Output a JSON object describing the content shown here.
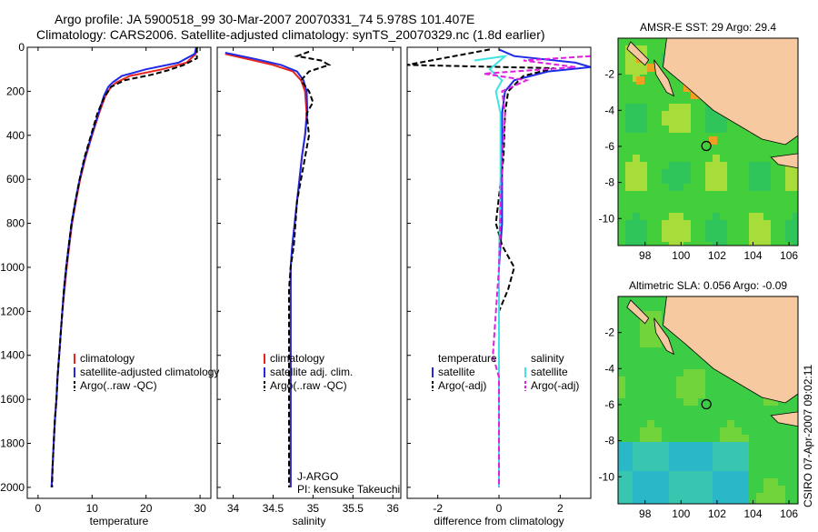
{
  "title": {
    "line1": "Argo profile: JA 5900518_99 30-Mar-2007 20070331_74 5.978S 101.407E",
    "line2": "Climatology: CARS2006. Satellite-adjusted climatology: synTS_20070329.nc (1.8d earlier)"
  },
  "stamp": "CSIRO 07-Apr-2007 09:02:11",
  "colors": {
    "climatology": "#e8241c",
    "satellite": "#1e2ae6",
    "argo": "#000000",
    "sat_salinity": "#3fe3e3",
    "argo_adj": "#e020e0",
    "land": "#f7c9a0",
    "sea_hi": "#4ed23a",
    "sea_lo": "#2cc2a8"
  },
  "chart_data": [
    {
      "type": "line",
      "xlabel": "temperature",
      "xlim": [
        -2,
        32
      ],
      "xticks": [
        "0",
        "10",
        "20",
        "30"
      ],
      "xtick_values": [
        0,
        10,
        20,
        30
      ],
      "ylim": [
        2050,
        0
      ],
      "yticks": [
        "0",
        "200",
        "400",
        "600",
        "800",
        "1000",
        "1200",
        "1400",
        "1600",
        "1800",
        "2000"
      ],
      "ytick_values": [
        0,
        200,
        400,
        600,
        800,
        1000,
        1200,
        1400,
        1600,
        1800,
        2000
      ],
      "series": [
        {
          "name": "climatology",
          "style": "solid",
          "color": "climatology",
          "points": [
            [
              29.5,
              0
            ],
            [
              29.2,
              30
            ],
            [
              27.5,
              70
            ],
            [
              23,
              100
            ],
            [
              17,
              130
            ],
            [
              14.5,
              160
            ],
            [
              13.5,
              180
            ],
            [
              12.5,
              220
            ],
            [
              11.3,
              300
            ],
            [
              10,
              400
            ],
            [
              8.8,
              500
            ],
            [
              7.8,
              600
            ],
            [
              7,
              700
            ],
            [
              6.3,
              800
            ],
            [
              5.8,
              900
            ],
            [
              5.3,
              1000
            ],
            [
              4.9,
              1100
            ],
            [
              4.5,
              1200
            ],
            [
              4.2,
              1300
            ],
            [
              3.9,
              1400
            ],
            [
              3.6,
              1500
            ],
            [
              3.4,
              1600
            ],
            [
              3.1,
              1700
            ],
            [
              2.9,
              1800
            ],
            [
              2.7,
              1900
            ],
            [
              2.5,
              2000
            ]
          ]
        },
        {
          "name": "satellite-adjusted climatology",
          "style": "solid",
          "color": "satellite",
          "points": [
            [
              29.3,
              0
            ],
            [
              29,
              30
            ],
            [
              26,
              70
            ],
            [
              20,
              100
            ],
            [
              15.5,
              130
            ],
            [
              13.8,
              160
            ],
            [
              13,
              180
            ],
            [
              12.2,
              220
            ],
            [
              11.2,
              300
            ],
            [
              9.9,
              400
            ],
            [
              8.7,
              500
            ],
            [
              7.7,
              600
            ],
            [
              6.9,
              700
            ],
            [
              6.2,
              800
            ],
            [
              5.7,
              900
            ],
            [
              5.2,
              1000
            ],
            [
              4.8,
              1100
            ],
            [
              4.5,
              1200
            ],
            [
              4.2,
              1300
            ],
            [
              3.9,
              1400
            ],
            [
              3.6,
              1500
            ],
            [
              3.4,
              1600
            ],
            [
              3.1,
              1700
            ],
            [
              2.9,
              1800
            ],
            [
              2.7,
              1900
            ],
            [
              2.5,
              2000
            ]
          ]
        },
        {
          "name": "Argo(..raw -QC)",
          "style": "dash",
          "color": "argo",
          "points": [
            [
              29.4,
              0
            ],
            [
              29.4,
              50
            ],
            [
              27,
              80
            ],
            [
              24,
              105
            ],
            [
              21,
              125
            ],
            [
              16,
              150
            ],
            [
              13.5,
              180
            ],
            [
              12.2,
              230
            ],
            [
              11,
              300
            ],
            [
              9.8,
              400
            ],
            [
              8.6,
              500
            ],
            [
              7.7,
              600
            ],
            [
              6.9,
              700
            ],
            [
              6.2,
              800
            ],
            [
              5.7,
              900
            ],
            [
              5.2,
              1000
            ],
            [
              4.8,
              1100
            ],
            [
              4.5,
              1200
            ],
            [
              4.2,
              1300
            ],
            [
              3.9,
              1400
            ],
            [
              3.6,
              1500
            ],
            [
              3.4,
              1600
            ],
            [
              3.1,
              1700
            ],
            [
              2.9,
              1800
            ],
            [
              2.7,
              1900
            ],
            [
              2.6,
              2000
            ]
          ]
        }
      ],
      "legend": [
        "climatology",
        "satellite-adjusted climatology",
        "Argo(..raw -QC)"
      ]
    },
    {
      "type": "line",
      "xlabel": "salinity",
      "xlim": [
        33.8,
        36.1
      ],
      "xticks": [
        "34",
        "34.5",
        "35",
        "35.5",
        "36"
      ],
      "xtick_values": [
        34,
        34.5,
        35,
        35.5,
        36
      ],
      "ylim": [
        2050,
        0
      ],
      "series": [
        {
          "name": "climatology",
          "style": "solid",
          "color": "climatology",
          "points": [
            [
              33.9,
              30
            ],
            [
              34.2,
              55
            ],
            [
              34.5,
              80
            ],
            [
              34.75,
              110
            ],
            [
              34.85,
              150
            ],
            [
              34.9,
              200
            ],
            [
              34.92,
              300
            ],
            [
              34.9,
              400
            ],
            [
              34.86,
              500
            ],
            [
              34.83,
              600
            ],
            [
              34.8,
              700
            ],
            [
              34.77,
              800
            ],
            [
              34.74,
              900
            ],
            [
              34.72,
              1000
            ],
            [
              34.72,
              1100
            ],
            [
              34.72,
              1200
            ],
            [
              34.72,
              1300
            ],
            [
              34.72,
              1400
            ],
            [
              34.72,
              1500
            ],
            [
              34.72,
              1600
            ],
            [
              34.72,
              1700
            ],
            [
              34.72,
              1800
            ],
            [
              34.72,
              1900
            ],
            [
              34.72,
              2000
            ]
          ]
        },
        {
          "name": "satellite adj. clim.",
          "style": "solid",
          "color": "satellite",
          "points": [
            [
              33.9,
              25
            ],
            [
              34.3,
              55
            ],
            [
              34.6,
              80
            ],
            [
              34.8,
              110
            ],
            [
              34.88,
              150
            ],
            [
              34.92,
              200
            ],
            [
              34.93,
              300
            ],
            [
              34.9,
              400
            ],
            [
              34.86,
              500
            ],
            [
              34.83,
              600
            ],
            [
              34.8,
              700
            ],
            [
              34.77,
              800
            ],
            [
              34.74,
              900
            ],
            [
              34.72,
              1000
            ],
            [
              34.72,
              1100
            ],
            [
              34.72,
              1200
            ],
            [
              34.72,
              1300
            ],
            [
              34.72,
              1400
            ],
            [
              34.72,
              1500
            ],
            [
              34.72,
              1600
            ],
            [
              34.72,
              1700
            ],
            [
              34.72,
              1800
            ],
            [
              34.72,
              1900
            ],
            [
              34.72,
              2000
            ]
          ]
        },
        {
          "name": "Argo(..raw -QC)",
          "style": "dash",
          "color": "argo",
          "points": [
            [
              34.95,
              20
            ],
            [
              34.8,
              40
            ],
            [
              35.1,
              60
            ],
            [
              35.2,
              80
            ],
            [
              34.95,
              110
            ],
            [
              34.85,
              150
            ],
            [
              34.95,
              200
            ],
            [
              35.0,
              250
            ],
            [
              34.92,
              300
            ],
            [
              34.95,
              400
            ],
            [
              34.9,
              500
            ],
            [
              34.85,
              600
            ],
            [
              34.8,
              700
            ],
            [
              34.78,
              800
            ],
            [
              34.76,
              900
            ],
            [
              34.72,
              1000
            ],
            [
              34.7,
              1100
            ],
            [
              34.7,
              1200
            ],
            [
              34.7,
              1300
            ],
            [
              34.7,
              1400
            ],
            [
              34.7,
              1500
            ],
            [
              34.7,
              1600
            ],
            [
              34.7,
              1700
            ],
            [
              34.7,
              1800
            ],
            [
              34.7,
              1900
            ],
            [
              34.7,
              2000
            ]
          ]
        }
      ],
      "legend": [
        "climatology",
        "satellite adj. clim.",
        "Argo(..raw -QC)"
      ],
      "annotations": [
        "J-ARGO",
        "PI: kensuke Takeuchi"
      ]
    },
    {
      "type": "line",
      "xlabel": "difference from climatology",
      "xlim": [
        -3,
        3
      ],
      "xticks": [
        "-2",
        "0",
        "2"
      ],
      "xtick_values": [
        -2,
        0,
        2
      ],
      "ylim": [
        2050,
        0
      ],
      "series": [
        {
          "name": "temperature satellite",
          "style": "solid",
          "color": "satellite",
          "points": [
            [
              0,
              10
            ],
            [
              0.5,
              40
            ],
            [
              2.5,
              70
            ],
            [
              3,
              90
            ],
            [
              1.6,
              110
            ],
            [
              0.5,
              150
            ],
            [
              0.2,
              200
            ],
            [
              0.1,
              300
            ],
            [
              0.1,
              500
            ],
            [
              0.1,
              800
            ],
            [
              0,
              1000
            ],
            [
              0,
              1500
            ],
            [
              0,
              2000
            ]
          ]
        },
        {
          "name": "temperature Argo(-adj)",
          "style": "dash",
          "color": "argo",
          "points": [
            [
              -0.3,
              10
            ],
            [
              -3,
              80
            ],
            [
              1.8,
              95
            ],
            [
              0.8,
              130
            ],
            [
              0.3,
              200
            ],
            [
              0.2,
              300
            ],
            [
              0.15,
              500
            ],
            [
              -0.1,
              800
            ],
            [
              0.1,
              900
            ],
            [
              0.5,
              1000
            ],
            [
              0.3,
              1100
            ],
            [
              0,
              1200
            ],
            [
              0,
              1500
            ],
            [
              0,
              2000
            ]
          ]
        },
        {
          "name": "salinity satellite",
          "style": "solid",
          "color": "sat_salinity",
          "points": [
            [
              -0.8,
              60
            ],
            [
              0.2,
              40
            ],
            [
              -0.3,
              100
            ],
            [
              0.1,
              150
            ],
            [
              -0.1,
              200
            ],
            [
              0.05,
              300
            ],
            [
              0.05,
              600
            ],
            [
              0,
              1000
            ],
            [
              0,
              1500
            ],
            [
              0,
              2000
            ]
          ]
        },
        {
          "name": "salinity Argo(-adj)",
          "style": "dash",
          "color": "argo_adj",
          "points": [
            [
              3,
              40
            ],
            [
              0.8,
              60
            ],
            [
              2.5,
              90
            ],
            [
              -0.5,
              120
            ],
            [
              0.9,
              150
            ],
            [
              0.1,
              200
            ],
            [
              0.2,
              300
            ],
            [
              0.1,
              500
            ],
            [
              0,
              1000
            ],
            [
              -0.2,
              1400
            ],
            [
              0,
              1500
            ],
            [
              0,
              2000
            ]
          ]
        }
      ],
      "legend_left_title": "temperature",
      "legend_right_title": "salinity",
      "legend_left": [
        "satellite",
        "Argo(-adj)"
      ],
      "legend_right": [
        "satellite",
        "Argo(-adj)"
      ]
    }
  ],
  "maps": [
    {
      "title": "AMSR-E SST: 29 Argo: 29.4",
      "xticks": [
        "98",
        "100",
        "102",
        "104",
        "106"
      ],
      "yticks": [
        "-2",
        "-4",
        "-6",
        "-8",
        "-10"
      ]
    },
    {
      "title": "Altimetric SLA: 0.056 Argo: -0.09",
      "xticks": [
        "98",
        "100",
        "102",
        "104",
        "106"
      ],
      "yticks": [
        "-2",
        "-4",
        "-6",
        "-8",
        "-10"
      ]
    }
  ]
}
